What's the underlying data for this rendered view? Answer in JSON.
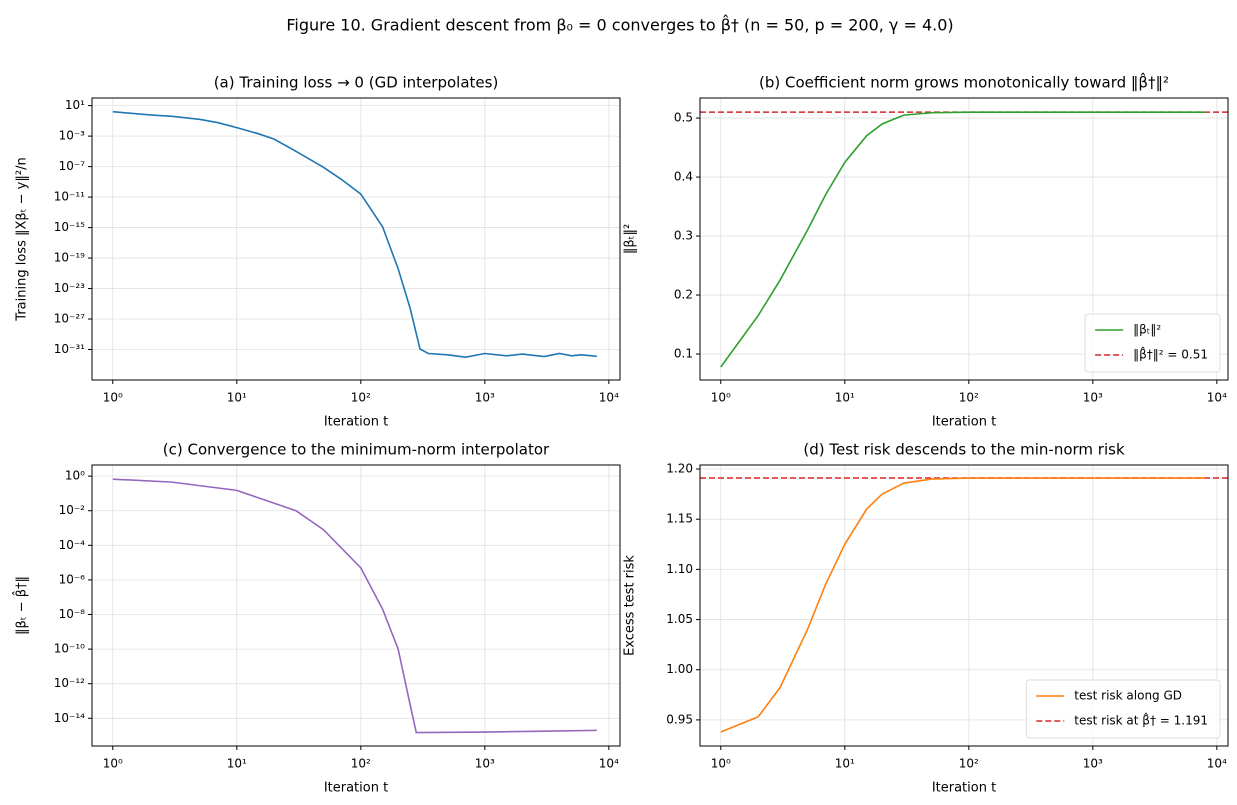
{
  "title": "Figure 10.  Gradient descent from β₀ = 0 converges to β̂†  (n = 50,  p = 200, γ = 4.0)",
  "chart_data": [
    {
      "type": "line",
      "title": "(a) Training loss → 0  (GD interpolates)",
      "x_label": "Iteration  t",
      "y_label": "Training loss  ‖Xβₜ − y‖²/n",
      "xscale": "log",
      "yscale": "log",
      "grid": true,
      "xlim": [
        0.68,
        12300
      ],
      "ylim": [
        1e-35,
        100
      ],
      "xticks": [
        {
          "value": 1,
          "label": "10⁰"
        },
        {
          "value": 10,
          "label": "10¹"
        },
        {
          "value": 100,
          "label": "10²"
        },
        {
          "value": 1000,
          "label": "10³"
        },
        {
          "value": 10000,
          "label": "10⁴"
        }
      ],
      "yticks": [
        {
          "value": 10,
          "label": "10¹"
        },
        {
          "value": 0.001,
          "label": "10⁻³"
        },
        {
          "value": 1e-07,
          "label": "10⁻⁷"
        },
        {
          "value": 1e-11,
          "label": "10⁻¹¹"
        },
        {
          "value": 1e-15,
          "label": "10⁻¹⁵"
        },
        {
          "value": 1e-19,
          "label": "10⁻¹⁹"
        },
        {
          "value": 1e-23,
          "label": "10⁻²³"
        },
        {
          "value": 1e-27,
          "label": "10⁻²⁷"
        },
        {
          "value": 1e-31,
          "label": "10⁻³¹"
        }
      ],
      "x": [
        1,
        2,
        3,
        5,
        7,
        10,
        15,
        20,
        30,
        50,
        70,
        100,
        150,
        200,
        250,
        300,
        350,
        500,
        700,
        1000,
        1500,
        2000,
        3000,
        4000,
        5000,
        6000,
        8000
      ],
      "series": [
        {
          "color": "#1f77b4",
          "values": [
            1.6,
            0.6,
            0.4,
            0.16,
            0.06,
            0.013,
            0.002,
            0.0004,
            1e-05,
            8e-08,
            2e-09,
            2.5e-11,
            1.2e-15,
            4e-21,
            2.5e-26,
            1.2e-31,
            3e-32,
            2e-32,
            1e-32,
            3e-32,
            1.5e-32,
            2.5e-32,
            1.2e-32,
            3e-32,
            1.5e-32,
            2e-32,
            1.3e-32
          ]
        }
      ]
    },
    {
      "type": "line",
      "title": "(b) Coefficient norm grows monotonically toward ‖β̂†‖²",
      "x_label": "Iteration  t",
      "y_label": "‖βₜ‖²",
      "xscale": "log",
      "yscale": "linear",
      "grid": true,
      "legend": "lower right",
      "xlim": [
        0.68,
        12300
      ],
      "ylim": [
        0.056,
        0.534
      ],
      "xticks": [
        {
          "value": 1,
          "label": "10⁰"
        },
        {
          "value": 10,
          "label": "10¹"
        },
        {
          "value": 100,
          "label": "10²"
        },
        {
          "value": 1000,
          "label": "10³"
        },
        {
          "value": 10000,
          "label": "10⁴"
        }
      ],
      "yticks": [
        0.1,
        0.2,
        0.3,
        0.4,
        0.5
      ],
      "x": [
        1,
        2,
        3,
        5,
        7,
        10,
        15,
        20,
        30,
        50,
        100,
        1000,
        8000
      ],
      "series": [
        {
          "name": "‖βₜ‖²",
          "color": "#2ca02c",
          "values": [
            0.078,
            0.165,
            0.225,
            0.31,
            0.37,
            0.425,
            0.47,
            0.49,
            0.505,
            0.509,
            0.51,
            0.51,
            0.51
          ]
        }
      ],
      "reference_lines": [
        {
          "name": "‖β̂†‖² = 0.51",
          "color": "#d62728",
          "value": 0.51
        }
      ]
    },
    {
      "type": "line",
      "title": "(c) Convergence to the minimum-norm interpolator",
      "x_label": "Iteration  t",
      "y_label": "‖βₜ − β̂†‖",
      "xscale": "log",
      "yscale": "log",
      "grid": true,
      "xlim": [
        0.68,
        12300
      ],
      "ylim": [
        2.5e-16,
        4.4
      ],
      "xticks": [
        {
          "value": 1,
          "label": "10⁰"
        },
        {
          "value": 10,
          "label": "10¹"
        },
        {
          "value": 100,
          "label": "10²"
        },
        {
          "value": 1000,
          "label": "10³"
        },
        {
          "value": 10000,
          "label": "10⁴"
        }
      ],
      "yticks": [
        {
          "value": 1,
          "label": "10⁰"
        },
        {
          "value": 0.01,
          "label": "10⁻²"
        },
        {
          "value": 0.0001,
          "label": "10⁻⁴"
        },
        {
          "value": 1e-06,
          "label": "10⁻⁶"
        },
        {
          "value": 1e-08,
          "label": "10⁻⁸"
        },
        {
          "value": 1e-10,
          "label": "10⁻¹⁰"
        },
        {
          "value": 1e-12,
          "label": "10⁻¹²"
        },
        {
          "value": 1e-14,
          "label": "10⁻¹⁴"
        }
      ],
      "x": [
        1,
        3,
        10,
        30,
        50,
        100,
        150,
        200,
        250,
        280,
        1000,
        3000,
        8000
      ],
      "series": [
        {
          "color": "#9467bd",
          "values": [
            0.67,
            0.45,
            0.15,
            0.01,
            0.0008,
            5e-06,
            2e-08,
            1e-10,
            6e-14,
            1.5e-15,
            1.6e-15,
            1.8e-15,
            2e-15
          ]
        }
      ]
    },
    {
      "type": "line",
      "title": "(d) Test risk descends to the min-norm risk",
      "x_label": "Iteration  t",
      "y_label": "Excess test risk",
      "xscale": "log",
      "yscale": "linear",
      "grid": true,
      "legend": "lower right",
      "xlim": [
        0.68,
        12300
      ],
      "ylim": [
        0.924,
        1.204
      ],
      "xticks": [
        {
          "value": 1,
          "label": "10⁰"
        },
        {
          "value": 10,
          "label": "10¹"
        },
        {
          "value": 100,
          "label": "10²"
        },
        {
          "value": 1000,
          "label": "10³"
        },
        {
          "value": 10000,
          "label": "10⁴"
        }
      ],
      "yticks": [
        0.95,
        {
          "value": 1,
          "label": "1.00"
        },
        1.05,
        {
          "value": 1.1,
          "label": "1.10"
        },
        1.15,
        {
          "value": 1.2,
          "label": "1.20"
        }
      ],
      "x": [
        1,
        2,
        3,
        5,
        7,
        10,
        15,
        20,
        30,
        50,
        100,
        8000
      ],
      "series": [
        {
          "name": "test risk along GD",
          "color": "#ff7f0e",
          "values": [
            0.938,
            0.953,
            0.982,
            1.04,
            1.085,
            1.125,
            1.16,
            1.175,
            1.186,
            1.19,
            1.191,
            1.191
          ]
        }
      ],
      "reference_lines": [
        {
          "name": "test risk at β̂† = 1.191",
          "color": "#d62728",
          "value": 1.191
        }
      ]
    }
  ]
}
